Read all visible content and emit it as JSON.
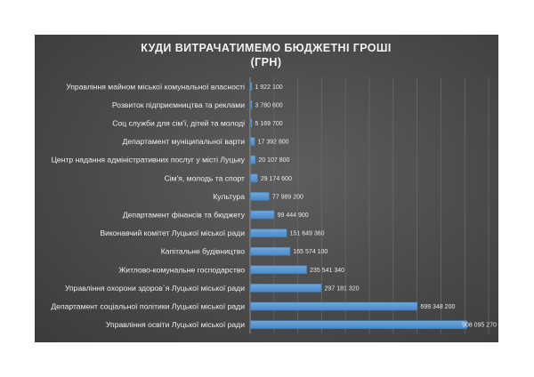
{
  "chart_data": {
    "type": "bar",
    "orientation": "horizontal",
    "title": "КУДИ ВИТРАЧАТИМЕМО БЮДЖЕТНІ ГРОШІ",
    "subtitle": "(ГРН)",
    "categories": [
      "Управління майном міської комунальної власності",
      "Розвиток підприємництва та реклами",
      "Соц служби для сім'ї, дітей та молоді",
      "Департамент муніципальної варти",
      "Центр надання адміністративних послуг у місті Луцьку",
      "Сім'я, молодь та спорт",
      "Культура",
      "Департамент фінансів та бюджету",
      "Виконавчий комітет Луцької міської ради",
      "Капітальне будівництво",
      "Житлово-комунальне господарство",
      "Управління охорони здоров`я Луцької міської ради",
      "Департамент соціальної політики Луцької міської ради",
      "Управління освіти Луцької міської ради"
    ],
    "values": [
      1922100,
      3780600,
      5169700,
      17392800,
      20107800,
      29174600,
      77989200,
      99444900,
      151649360,
      165574100,
      235541340,
      297181320,
      699348200,
      908095270
    ],
    "value_labels": [
      "1 922 100",
      "3 780 600",
      "5 169 700",
      "17 392 800",
      "20 107 800",
      "29 174 600",
      "77 989 200",
      "99 444 900",
      "151 649 360",
      "165 574 100",
      "235 541 340",
      "297 181 320",
      "699 348 200",
      "908 095 270"
    ],
    "xlim": [
      0,
      1000000000
    ],
    "grid": true,
    "legend": "none",
    "colors": {
      "bar": "#5b9bd5",
      "bar_edge": "#3d7fbf",
      "background": "#4a4a4a"
    }
  }
}
